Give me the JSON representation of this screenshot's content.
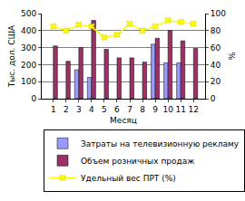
{
  "chart_data": {
    "type": "bar",
    "categories": [
      "1",
      "2",
      "3",
      "4",
      "5",
      "6",
      "7",
      "8",
      "9",
      "10",
      "11",
      "12"
    ],
    "x_label": "Месяц",
    "y_label": "Тыс. дол. США",
    "y2_label": "%",
    "ylim": [
      0,
      500
    ],
    "yticks": [
      0,
      100,
      200,
      300,
      400,
      500
    ],
    "y2lim": [
      0,
      100
    ],
    "y2ticks": [
      0,
      20,
      40,
      60,
      80,
      100
    ],
    "grid": true,
    "legend": "bottom",
    "series": [
      {
        "name": "Затраты на телевизионную рекламу",
        "type": "bar",
        "color": "#9999ff",
        "values": [
          null,
          null,
          170,
          125,
          null,
          null,
          null,
          null,
          320,
          210,
          210,
          null
        ]
      },
      {
        "name": "Объем розничных продаж",
        "type": "bar",
        "color": "#993366",
        "values": [
          310,
          220,
          300,
          460,
          290,
          240,
          240,
          215,
          355,
          400,
          340,
          295
        ]
      },
      {
        "name": "Удельный вес ПРТ (%)",
        "type": "line",
        "color": "#ffff00",
        "marker": "x",
        "line_style": "solid",
        "axis": "y2",
        "values": [
          85,
          80,
          87,
          85,
          72,
          75,
          88,
          80,
          85,
          92,
          90,
          88
        ]
      }
    ]
  }
}
